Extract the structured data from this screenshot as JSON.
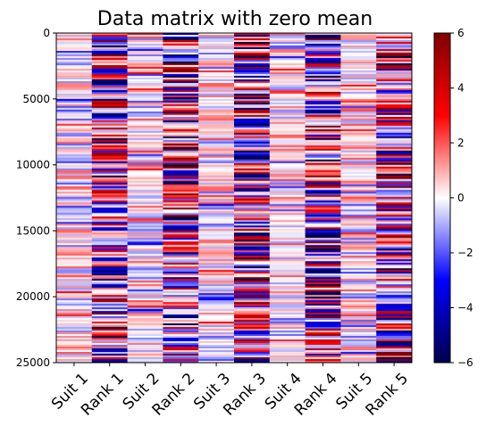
{
  "chart_data": {
    "type": "heatmap",
    "title": "Data matrix with zero mean",
    "xlabel": "",
    "ylabel": "",
    "columns": [
      "Suit 1",
      "Rank 1",
      "Suit 2",
      "Rank 2",
      "Suit 3",
      "Rank 3",
      "Suit 4",
      "Rank 4",
      "Suit 5",
      "Rank 5"
    ],
    "y_ticks": [
      0,
      5000,
      10000,
      15000,
      20000,
      25000
    ],
    "ylim": [
      0,
      25000
    ],
    "y_inverted": true,
    "colorbar": {
      "cmap": "seismic",
      "vmin": -6,
      "vmax": 6,
      "ticks": [
        -6,
        -4,
        -2,
        0,
        2,
        4,
        6
      ],
      "colors": [
        "#00004c",
        "#0000ff",
        "#ffffff",
        "#ff0000",
        "#800000"
      ],
      "placement": "right"
    },
    "column_value_spread": {
      "Suit 1": 1.2,
      "Rank 1": 3.6,
      "Suit 2": 1.2,
      "Rank 2": 3.6,
      "Suit 3": 1.2,
      "Rank 3": 3.6,
      "Suit 4": 1.2,
      "Rank 4": 3.6,
      "Suit 5": 1.2,
      "Rank 5": 3.6
    },
    "grid": false
  }
}
